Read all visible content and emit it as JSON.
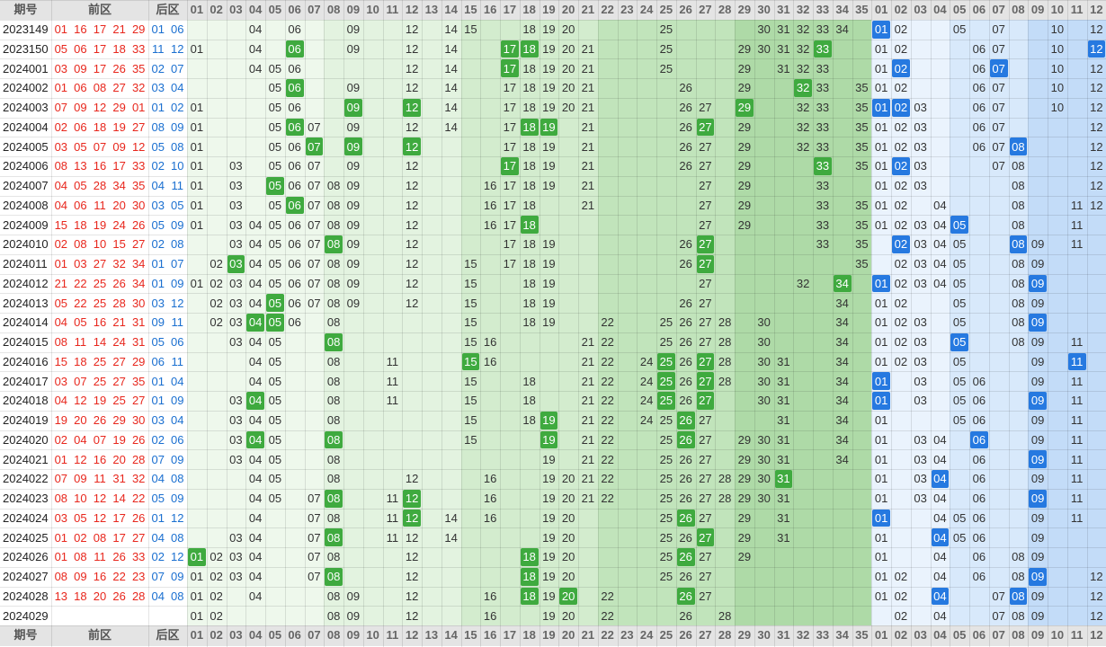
{
  "header": {
    "issue_label": "期号",
    "front_label": "前区",
    "back_label": "后区",
    "front_numbers": [
      "01",
      "02",
      "03",
      "04",
      "05",
      "06",
      "07",
      "08",
      "09",
      "10",
      "11",
      "12",
      "13",
      "14",
      "15",
      "16",
      "17",
      "18",
      "19",
      "20",
      "21",
      "22",
      "23",
      "24",
      "25",
      "26",
      "27",
      "28",
      "29",
      "30",
      "31",
      "32",
      "33",
      "34",
      "35"
    ],
    "back_numbers": [
      "01",
      "02",
      "03",
      "04",
      "05",
      "06",
      "07",
      "08",
      "09",
      "10",
      "11",
      "12"
    ]
  },
  "colors": {
    "front_draw": "#e8271d",
    "back_draw": "#1a6fd0",
    "front_hit": "#3faa3f",
    "back_hit": "#2679e0",
    "header_bg": "#e4e4e4"
  },
  "rows": [
    {
      "issue": "2023149",
      "front": [
        "01",
        "16",
        "17",
        "21",
        "29"
      ],
      "back": [
        "01",
        "06"
      ],
      "fz": [
        4,
        6,
        9,
        12,
        14,
        15,
        18,
        19,
        20,
        25,
        30,
        31,
        32,
        33,
        34
      ],
      "fh": [],
      "bz": [
        2,
        5,
        7,
        10,
        12
      ],
      "bh": [
        1
      ]
    },
    {
      "issue": "2023150",
      "front": [
        "05",
        "06",
        "17",
        "18",
        "33"
      ],
      "back": [
        "11",
        "12"
      ],
      "fz": [
        1,
        4,
        9,
        12,
        14,
        19,
        20,
        21,
        25,
        29,
        30,
        31,
        32
      ],
      "fh": [
        6,
        17,
        18,
        33
      ],
      "bz": [
        1,
        2,
        6,
        7,
        10
      ],
      "bh": [
        12
      ]
    },
    {
      "issue": "2024001",
      "front": [
        "03",
        "09",
        "17",
        "26",
        "35"
      ],
      "back": [
        "02",
        "07"
      ],
      "fz": [
        4,
        5,
        6,
        12,
        14,
        18,
        19,
        20,
        21,
        25,
        29,
        31,
        32,
        33
      ],
      "fh": [
        17
      ],
      "bz": [
        1,
        6,
        10,
        12
      ],
      "bh": [
        2,
        7
      ]
    },
    {
      "issue": "2024002",
      "front": [
        "01",
        "06",
        "08",
        "27",
        "32"
      ],
      "back": [
        "03",
        "04"
      ],
      "fz": [
        5,
        9,
        12,
        14,
        17,
        18,
        19,
        20,
        21,
        26,
        29,
        33,
        35
      ],
      "fh": [
        6,
        32
      ],
      "bz": [
        1,
        2,
        6,
        7,
        10,
        12
      ],
      "bh": []
    },
    {
      "issue": "2024003",
      "front": [
        "07",
        "09",
        "12",
        "29",
        "01"
      ],
      "back": [
        "01",
        "02"
      ],
      "fz": [
        1,
        5,
        6,
        14,
        17,
        18,
        19,
        20,
        21,
        26,
        27,
        32,
        33,
        35
      ],
      "fh": [
        9,
        12,
        29
      ],
      "bz": [
        3,
        6,
        7,
        10,
        12
      ],
      "bh": [
        1,
        2
      ]
    },
    {
      "issue": "2024004",
      "front": [
        "02",
        "06",
        "18",
        "19",
        "27"
      ],
      "back": [
        "08",
        "09"
      ],
      "fz": [
        1,
        5,
        7,
        9,
        12,
        14,
        17,
        21,
        26,
        29,
        32,
        33,
        35
      ],
      "fh": [
        6,
        18,
        19,
        27
      ],
      "bz": [
        1,
        2,
        3,
        6,
        7,
        12
      ],
      "bh": []
    },
    {
      "issue": "2024005",
      "front": [
        "03",
        "05",
        "07",
        "09",
        "12"
      ],
      "back": [
        "05",
        "08"
      ],
      "fz": [
        1,
        5,
        6,
        17,
        18,
        19,
        21,
        26,
        27,
        29,
        32,
        33,
        35
      ],
      "fh": [
        7,
        9,
        12
      ],
      "bz": [
        1,
        2,
        3,
        6,
        7,
        12
      ],
      "bh": [
        8
      ]
    },
    {
      "issue": "2024006",
      "front": [
        "08",
        "13",
        "16",
        "17",
        "33"
      ],
      "back": [
        "02",
        "10"
      ],
      "fz": [
        1,
        3,
        5,
        6,
        7,
        9,
        12,
        18,
        19,
        21,
        26,
        27,
        29,
        35
      ],
      "fh": [
        17,
        33
      ],
      "bz": [
        1,
        3,
        7,
        8,
        12
      ],
      "bh": [
        2
      ]
    },
    {
      "issue": "2024007",
      "front": [
        "04",
        "05",
        "28",
        "34",
        "35"
      ],
      "back": [
        "04",
        "11"
      ],
      "fz": [
        1,
        3,
        6,
        7,
        8,
        9,
        12,
        16,
        17,
        18,
        19,
        21,
        27,
        29,
        33
      ],
      "fh": [
        5
      ],
      "bz": [
        1,
        2,
        3,
        8,
        12
      ],
      "bh": []
    },
    {
      "issue": "2024008",
      "front": [
        "04",
        "06",
        "11",
        "20",
        "30"
      ],
      "back": [
        "03",
        "05"
      ],
      "fz": [
        1,
        3,
        5,
        7,
        8,
        9,
        12,
        16,
        17,
        18,
        21,
        27,
        29,
        33,
        35
      ],
      "fh": [
        6
      ],
      "bz": [
        1,
        2,
        4,
        8,
        11,
        12
      ],
      "bh": []
    },
    {
      "issue": "2024009",
      "front": [
        "15",
        "18",
        "19",
        "24",
        "26"
      ],
      "back": [
        "05",
        "09"
      ],
      "fz": [
        1,
        3,
        4,
        5,
        6,
        7,
        8,
        9,
        12,
        16,
        17,
        27,
        29,
        33,
        35
      ],
      "fh": [
        18
      ],
      "bz": [
        1,
        2,
        3,
        4,
        8,
        11
      ],
      "bh": [
        5
      ]
    },
    {
      "issue": "2024010",
      "front": [
        "02",
        "08",
        "10",
        "15",
        "27"
      ],
      "back": [
        "02",
        "08"
      ],
      "fz": [
        3,
        4,
        5,
        6,
        7,
        9,
        12,
        17,
        18,
        19,
        26,
        33,
        35
      ],
      "fh": [
        8,
        27
      ],
      "bz": [
        3,
        4,
        5,
        9,
        11
      ],
      "bh": [
        2,
        8
      ]
    },
    {
      "issue": "2024011",
      "front": [
        "01",
        "03",
        "27",
        "32",
        "34"
      ],
      "back": [
        "01",
        "07"
      ],
      "fz": [
        2,
        4,
        5,
        6,
        7,
        8,
        9,
        12,
        15,
        17,
        18,
        19,
        26,
        35
      ],
      "fh": [
        3,
        27
      ],
      "bz": [
        2,
        3,
        4,
        5,
        8,
        9
      ],
      "bh": []
    },
    {
      "issue": "2024012",
      "front": [
        "21",
        "22",
        "25",
        "26",
        "34"
      ],
      "back": [
        "01",
        "09"
      ],
      "fz": [
        1,
        2,
        3,
        4,
        5,
        6,
        7,
        8,
        9,
        12,
        15,
        18,
        19,
        27,
        32
      ],
      "fh": [
        34
      ],
      "bz": [
        2,
        3,
        4,
        5,
        8
      ],
      "bh": [
        1,
        9
      ]
    },
    {
      "issue": "2024013",
      "front": [
        "05",
        "22",
        "25",
        "28",
        "30"
      ],
      "back": [
        "03",
        "12"
      ],
      "fz": [
        2,
        3,
        4,
        6,
        7,
        8,
        9,
        12,
        15,
        18,
        19,
        26,
        27,
        34
      ],
      "fh": [
        5
      ],
      "bz": [
        1,
        2,
        5,
        8,
        9
      ],
      "bh": []
    },
    {
      "issue": "2024014",
      "front": [
        "04",
        "05",
        "16",
        "21",
        "31"
      ],
      "back": [
        "09",
        "11"
      ],
      "fz": [
        2,
        3,
        6,
        8,
        15,
        18,
        19,
        22,
        25,
        26,
        27,
        28,
        30,
        34
      ],
      "fh": [
        4,
        5
      ],
      "bz": [
        1,
        2,
        3,
        5,
        8
      ],
      "bh": [
        9
      ]
    },
    {
      "issue": "2024015",
      "front": [
        "08",
        "11",
        "14",
        "24",
        "31"
      ],
      "back": [
        "05",
        "06"
      ],
      "fz": [
        3,
        4,
        5,
        15,
        16,
        21,
        22,
        25,
        26,
        27,
        28,
        30,
        34
      ],
      "fh": [
        8
      ],
      "bz": [
        1,
        2,
        3,
        8,
        9,
        11
      ],
      "bh": [
        5
      ]
    },
    {
      "issue": "2024016",
      "front": [
        "15",
        "18",
        "25",
        "27",
        "29"
      ],
      "back": [
        "06",
        "11"
      ],
      "fz": [
        4,
        5,
        8,
        11,
        16,
        21,
        22,
        24,
        26,
        28,
        30,
        31,
        34
      ],
      "fh": [
        15,
        25,
        27
      ],
      "bz": [
        1,
        2,
        3,
        5,
        9
      ],
      "bh": [
        11
      ]
    },
    {
      "issue": "2024017",
      "front": [
        "03",
        "07",
        "25",
        "27",
        "35"
      ],
      "back": [
        "01",
        "04"
      ],
      "fz": [
        4,
        5,
        8,
        11,
        15,
        18,
        21,
        22,
        24,
        26,
        28,
        30,
        31,
        34
      ],
      "fh": [
        25,
        27
      ],
      "bz": [
        3,
        5,
        6,
        9,
        11
      ],
      "bh": [
        1
      ]
    },
    {
      "issue": "2024018",
      "front": [
        "04",
        "12",
        "19",
        "25",
        "27"
      ],
      "back": [
        "01",
        "09"
      ],
      "fz": [
        3,
        5,
        8,
        11,
        15,
        18,
        21,
        22,
        24,
        26,
        30,
        31,
        34
      ],
      "fh": [
        4,
        25,
        27
      ],
      "bz": [
        3,
        5,
        6,
        11
      ],
      "bh": [
        1,
        9
      ]
    },
    {
      "issue": "2024019",
      "front": [
        "19",
        "20",
        "26",
        "29",
        "30"
      ],
      "back": [
        "03",
        "04"
      ],
      "fz": [
        3,
        4,
        5,
        8,
        15,
        18,
        21,
        22,
        24,
        25,
        27,
        31,
        34
      ],
      "fh": [
        19,
        26
      ],
      "bz": [
        1,
        5,
        6,
        9,
        11
      ],
      "bh": []
    },
    {
      "issue": "2024020",
      "front": [
        "02",
        "04",
        "07",
        "19",
        "26"
      ],
      "back": [
        "02",
        "06"
      ],
      "fz": [
        3,
        5,
        15,
        21,
        22,
        25,
        27,
        29,
        30,
        31,
        34
      ],
      "fh": [
        4,
        8,
        19,
        26
      ],
      "bz": [
        1,
        3,
        4,
        9,
        11
      ],
      "bh": [
        6
      ]
    },
    {
      "issue": "2024021",
      "front": [
        "01",
        "12",
        "16",
        "20",
        "28"
      ],
      "back": [
        "07",
        "09"
      ],
      "fz": [
        3,
        4,
        5,
        8,
        19,
        21,
        22,
        25,
        26,
        27,
        29,
        30,
        31,
        34
      ],
      "fh": [],
      "bz": [
        1,
        3,
        4,
        6,
        11
      ],
      "bh": [
        9
      ]
    },
    {
      "issue": "2024022",
      "front": [
        "07",
        "09",
        "11",
        "31",
        "32"
      ],
      "back": [
        "04",
        "08"
      ],
      "fz": [
        4,
        5,
        8,
        12,
        16,
        19,
        20,
        21,
        22,
        25,
        26,
        27,
        28,
        29,
        30
      ],
      "fh": [
        31
      ],
      "bz": [
        1,
        3,
        6,
        9,
        11
      ],
      "bh": [
        4
      ]
    },
    {
      "issue": "2024023",
      "front": [
        "08",
        "10",
        "12",
        "14",
        "22"
      ],
      "back": [
        "05",
        "09"
      ],
      "fz": [
        4,
        5,
        7,
        11,
        16,
        19,
        20,
        21,
        22,
        25,
        26,
        27,
        28,
        29,
        30,
        31
      ],
      "fh": [
        8,
        12
      ],
      "bz": [
        1,
        3,
        4,
        6,
        11
      ],
      "bh": [
        9
      ]
    },
    {
      "issue": "2024024",
      "front": [
        "03",
        "05",
        "12",
        "17",
        "26"
      ],
      "back": [
        "01",
        "12"
      ],
      "fz": [
        4,
        7,
        8,
        11,
        14,
        16,
        19,
        20,
        25,
        27,
        29,
        31
      ],
      "fh": [
        12,
        26
      ],
      "bz": [
        4,
        5,
        6,
        9,
        11
      ],
      "bh": [
        1
      ]
    },
    {
      "issue": "2024025",
      "front": [
        "01",
        "02",
        "08",
        "17",
        "27"
      ],
      "back": [
        "04",
        "08"
      ],
      "fz": [
        3,
        4,
        7,
        11,
        12,
        14,
        19,
        20,
        25,
        26,
        29,
        31
      ],
      "fh": [
        8,
        27
      ],
      "bz": [
        1,
        5,
        6,
        9
      ],
      "bh": [
        4
      ]
    },
    {
      "issue": "2024026",
      "front": [
        "01",
        "08",
        "11",
        "26",
        "33"
      ],
      "back": [
        "02",
        "12"
      ],
      "fz": [
        2,
        3,
        4,
        7,
        8,
        12,
        19,
        20,
        25,
        27,
        29
      ],
      "fh": [
        1,
        18,
        26
      ],
      "bz": [
        1,
        4,
        6,
        8,
        9
      ],
      "bh": []
    },
    {
      "issue": "2024027",
      "front": [
        "08",
        "09",
        "16",
        "22",
        "23"
      ],
      "back": [
        "07",
        "09"
      ],
      "fz": [
        1,
        2,
        3,
        4,
        7,
        12,
        19,
        20,
        25,
        26,
        27
      ],
      "fh": [
        8,
        18
      ],
      "bz": [
        1,
        2,
        4,
        6,
        8,
        12
      ],
      "bh": [
        9
      ]
    },
    {
      "issue": "2024028",
      "front": [
        "13",
        "18",
        "20",
        "26",
        "28"
      ],
      "back": [
        "04",
        "08"
      ],
      "fz": [
        1,
        2,
        4,
        8,
        9,
        12,
        16,
        19,
        22,
        27
      ],
      "fh": [
        18,
        20,
        26
      ],
      "bz": [
        1,
        2,
        7,
        9,
        12
      ],
      "bh": [
        4,
        8
      ]
    },
    {
      "issue": "2024029",
      "front": [],
      "back": [],
      "fz": [
        1,
        2,
        8,
        9,
        12,
        16,
        19,
        20,
        22,
        26,
        28
      ],
      "fh": [],
      "bz": [
        2,
        4,
        7,
        8,
        9,
        12
      ],
      "bh": []
    }
  ]
}
